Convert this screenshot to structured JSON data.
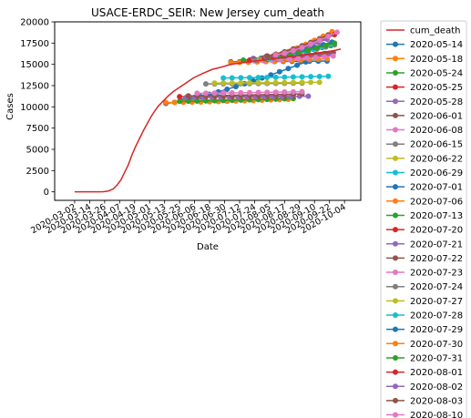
{
  "chart_data": {
    "type": "line",
    "title": "USACE-ERDC_SEIR: New Jersey cum_death",
    "xlabel": "Date",
    "ylabel": "Cases",
    "x_range": [
      "2020-02-15",
      "2020-10-17"
    ],
    "ylim": [
      -1000,
      20000
    ],
    "y_ticks": [
      0,
      2500,
      5000,
      7500,
      10000,
      12500,
      15000,
      17500,
      20000
    ],
    "x_ticks": [
      "2020-03-02",
      "2020-03-14",
      "2020-03-26",
      "2020-04-07",
      "2020-04-19",
      "2020-05-01",
      "2020-05-13",
      "2020-05-25",
      "2020-06-06",
      "2020-06-18",
      "2020-06-30",
      "2020-07-12",
      "2020-07-24",
      "2020-08-05",
      "2020-08-17",
      "2020-08-29",
      "2020-09-10",
      "2020-09-22",
      "2020-10-04"
    ],
    "grid": false,
    "legend_position": "outside-right",
    "actual": {
      "name": "cum_death",
      "color": "#d62728",
      "dates": [
        "2020-03-02",
        "2020-03-10",
        "2020-03-16",
        "2020-03-21",
        "2020-03-25",
        "2020-03-29",
        "2020-04-02",
        "2020-04-05",
        "2020-04-08",
        "2020-04-11",
        "2020-04-14",
        "2020-04-17",
        "2020-04-20",
        "2020-04-23",
        "2020-04-26",
        "2020-04-29",
        "2020-05-02",
        "2020-05-05",
        "2020-05-08",
        "2020-05-12",
        "2020-05-16",
        "2020-05-20",
        "2020-05-25",
        "2020-05-30",
        "2020-06-05",
        "2020-06-12",
        "2020-06-20",
        "2020-06-28",
        "2020-07-05",
        "2020-07-15",
        "2020-07-25",
        "2020-08-05",
        "2020-08-15",
        "2020-08-25",
        "2020-09-05",
        "2020-09-15",
        "2020-09-25",
        "2020-10-01"
      ],
      "values": [
        0,
        0,
        0,
        0,
        20,
        100,
        350,
        800,
        1400,
        2300,
        3200,
        4400,
        5400,
        6300,
        7200,
        8000,
        8800,
        9500,
        10100,
        10700,
        11300,
        11800,
        12300,
        12800,
        13400,
        13900,
        14400,
        14700,
        15000,
        15200,
        15400,
        15600,
        15800,
        16000,
        16200,
        16400,
        16600,
        16800
      ]
    },
    "series": [
      {
        "name": "2020-05-14",
        "color": "#1f77b4",
        "start": "2020-05-14",
        "end": "2020-09-05",
        "values": [
          10400,
          15400
        ]
      },
      {
        "name": "2020-05-18",
        "color": "#ff7f0e",
        "start": "2020-05-14",
        "end": "2020-08-22",
        "values": [
          10500,
          10900
        ]
      },
      {
        "name": "2020-05-24",
        "color": "#2ca02c",
        "start": "2020-05-25",
        "end": "2020-08-29",
        "values": [
          10650,
          11000
        ]
      },
      {
        "name": "2020-05-25",
        "color": "#d62728",
        "start": "2020-05-25",
        "end": "2020-08-29",
        "values": [
          11200,
          11300
        ]
      },
      {
        "name": "2020-05-28",
        "color": "#9467bd",
        "start": "2020-05-30",
        "end": "2020-09-05",
        "values": [
          11100,
          11250
        ]
      },
      {
        "name": "2020-06-01",
        "color": "#8c564b",
        "start": "2020-06-01",
        "end": "2020-09-05",
        "values": [
          11300,
          11550
        ]
      },
      {
        "name": "2020-06-08",
        "color": "#e377c2",
        "start": "2020-06-08",
        "end": "2020-09-05",
        "values": [
          11600,
          11800
        ]
      },
      {
        "name": "2020-06-15",
        "color": "#7f7f7f",
        "start": "2020-06-15",
        "end": "2020-09-05",
        "values": [
          12700,
          12800
        ]
      },
      {
        "name": "2020-06-22",
        "color": "#bcbd22",
        "start": "2020-06-22",
        "end": "2020-09-19",
        "values": [
          12800,
          12900
        ]
      },
      {
        "name": "2020-06-29",
        "color": "#17becf",
        "start": "2020-06-29",
        "end": "2020-09-22",
        "values": [
          13400,
          13600
        ]
      },
      {
        "name": "2020-07-01",
        "color": "#1f77b4",
        "start": "2020-07-05",
        "end": "2020-09-26",
        "values": [
          15300,
          15400
        ]
      },
      {
        "name": "2020-07-06",
        "color": "#ff7f0e",
        "start": "2020-07-05",
        "end": "2020-09-26",
        "values": [
          15200,
          15700
        ]
      },
      {
        "name": "2020-07-13",
        "color": "#2ca02c",
        "start": "2020-07-15",
        "end": "2020-09-26",
        "values": [
          15500,
          17300
        ]
      },
      {
        "name": "2020-07-20",
        "color": "#d62728",
        "start": "2020-07-20",
        "end": "2020-09-26",
        "values": [
          15500,
          16300
        ]
      },
      {
        "name": "2020-07-21",
        "color": "#9467bd",
        "start": "2020-07-23",
        "end": "2020-09-26",
        "values": [
          15700,
          16200
        ]
      },
      {
        "name": "2020-07-22",
        "color": "#8c564b",
        "start": "2020-07-24",
        "end": "2020-09-26",
        "values": [
          15600,
          16400
        ]
      },
      {
        "name": "2020-07-23",
        "color": "#e377c2",
        "start": "2020-07-24",
        "end": "2020-09-26",
        "values": [
          15400,
          16000
        ]
      },
      {
        "name": "2020-07-24",
        "color": "#7f7f7f",
        "start": "2020-07-25",
        "end": "2020-09-26",
        "values": [
          15500,
          17300
        ]
      },
      {
        "name": "2020-07-27",
        "color": "#bcbd22",
        "start": "2020-07-28",
        "end": "2020-09-26",
        "values": [
          15600,
          17600
        ]
      },
      {
        "name": "2020-07-28",
        "color": "#17becf",
        "start": "2020-07-29",
        "end": "2020-09-26",
        "values": [
          15600,
          17500
        ]
      },
      {
        "name": "2020-07-29",
        "color": "#1f77b4",
        "start": "2020-07-30",
        "end": "2020-09-26",
        "values": [
          15700,
          17700
        ]
      },
      {
        "name": "2020-07-30",
        "color": "#ff7f0e",
        "start": "2020-07-30",
        "end": "2020-09-26",
        "values": [
          15600,
          19000
        ]
      },
      {
        "name": "2020-07-31",
        "color": "#2ca02c",
        "start": "2020-08-01",
        "end": "2020-09-26",
        "values": [
          15700,
          17500
        ]
      },
      {
        "name": "2020-08-01",
        "color": "#d62728",
        "start": "2020-08-01",
        "end": "2020-09-26",
        "values": [
          15800,
          18500
        ]
      },
      {
        "name": "2020-08-02",
        "color": "#9467bd",
        "start": "2020-08-02",
        "end": "2020-09-26",
        "values": [
          15900,
          18300
        ]
      },
      {
        "name": "2020-08-03",
        "color": "#8c564b",
        "start": "2020-08-03",
        "end": "2020-09-26",
        "values": [
          16000,
          18800
        ]
      },
      {
        "name": "2020-08-10",
        "color": "#e377c2",
        "start": "2020-08-10",
        "end": "2020-10-01",
        "values": [
          16100,
          19000
        ]
      }
    ]
  }
}
